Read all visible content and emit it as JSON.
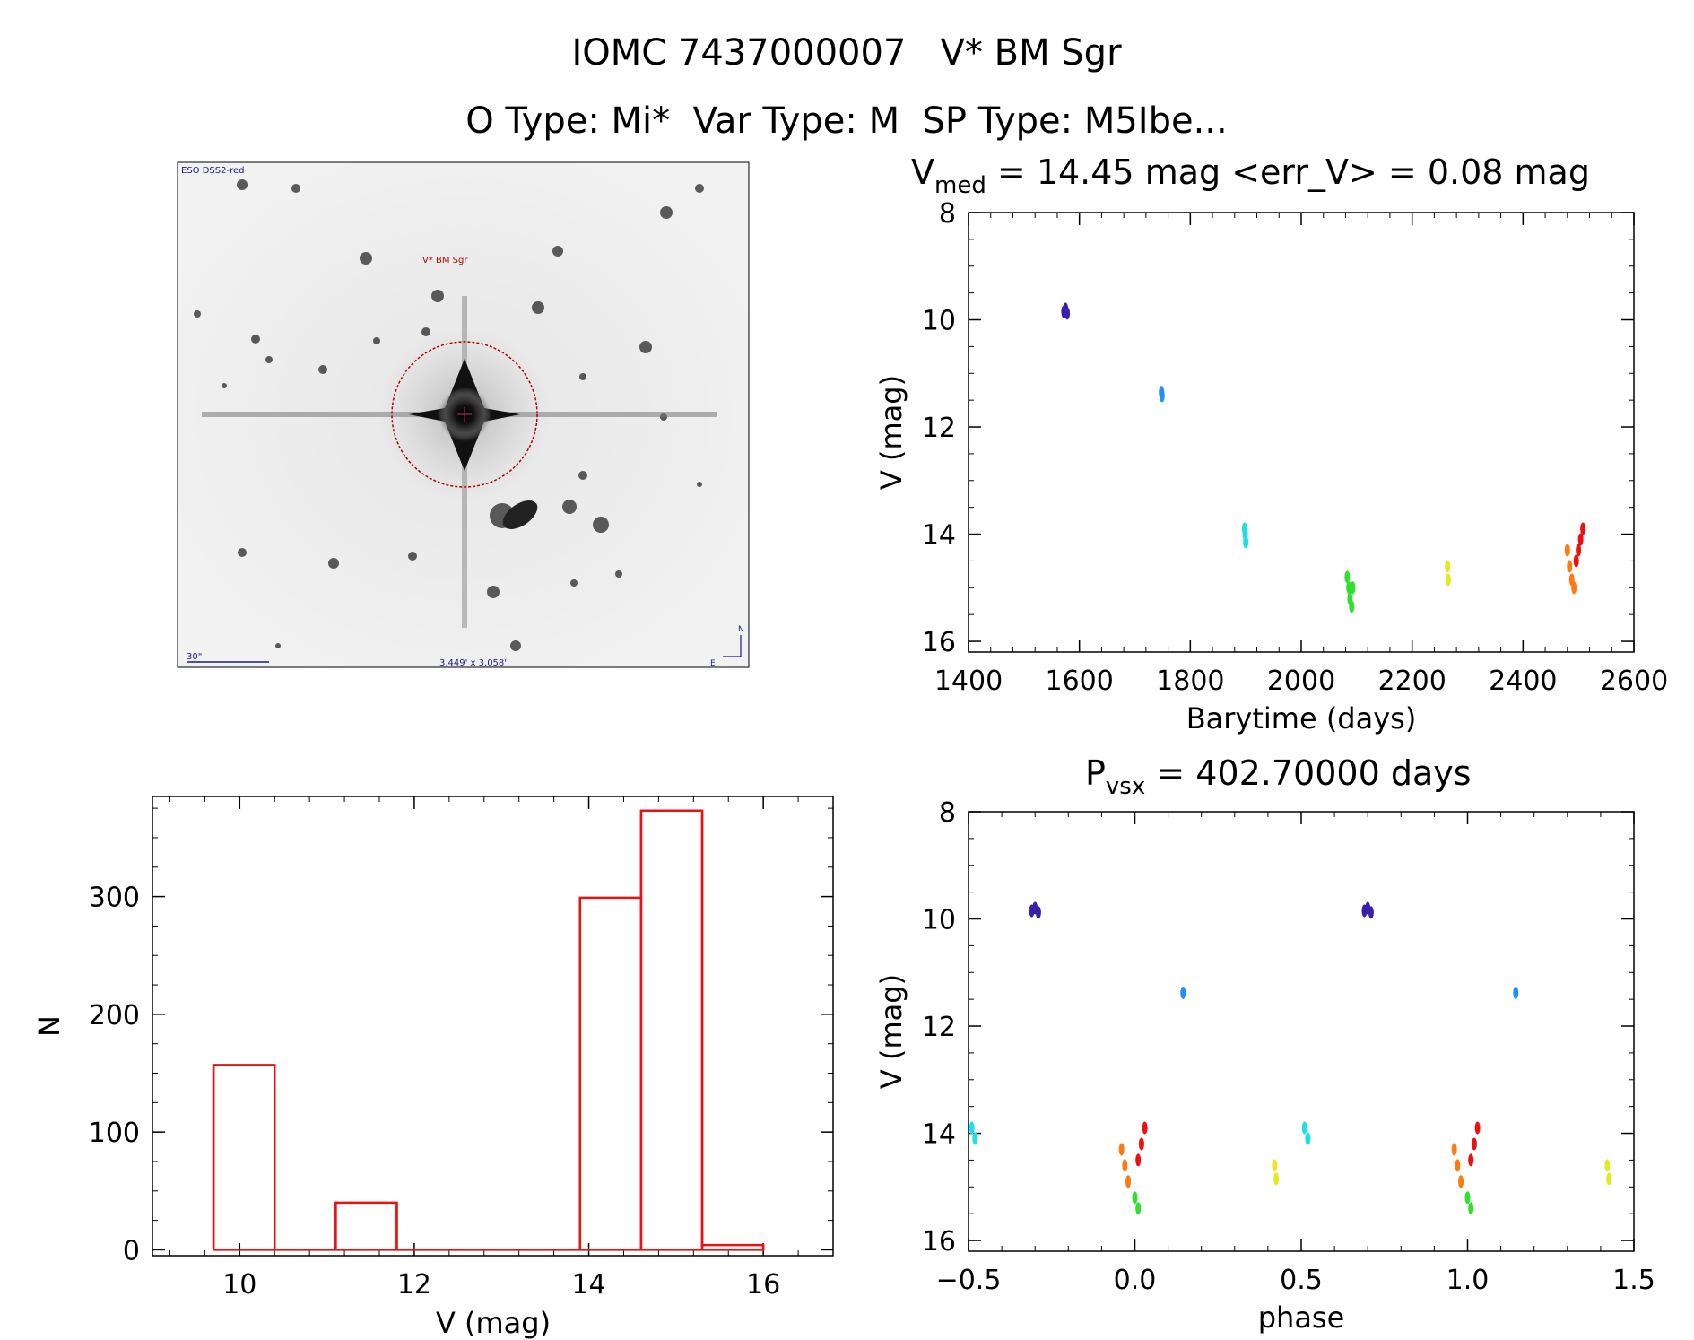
{
  "header": {
    "line1": "IOMC 7437000007   V* BM Sgr",
    "line2": "O Type: Mi*  Var Type: M  SP Type: M5Ibe..."
  },
  "image_panel": {
    "survey_label": "ESO DSS2-red",
    "object_label": "V* BM Sgr",
    "scale_label": "30\"",
    "fov_label": "3.449' x 3.058'",
    "compass_n": "N",
    "compass_e": "E"
  },
  "chart_data": [
    {
      "id": "lightcurve",
      "type": "scatter",
      "title": "V_med = 14.45 mag <err_V> = 0.08 mag",
      "title_parts": {
        "main": "V",
        "sub": "med",
        "rest": " = 14.45 mag <err_V> = 0.08 mag"
      },
      "xlabel": "Barytime (days)",
      "ylabel": "V (mag)",
      "xlim": [
        1400,
        2600
      ],
      "ylim": [
        16.2,
        8
      ],
      "y_inverted": true,
      "xticks": [
        1400,
        1600,
        1800,
        2000,
        2200,
        2400,
        2600
      ],
      "yticks": [
        8,
        10,
        12,
        14,
        16
      ],
      "groups": [
        {
          "color": "#3a1fa8",
          "x": [
            1572,
            1575,
            1578
          ],
          "y": [
            9.85,
            9.8,
            9.88
          ]
        },
        {
          "color": "#1e90ff",
          "x": [
            1748,
            1749
          ],
          "y": [
            11.35,
            11.42
          ]
        },
        {
          "color": "#20e0e0",
          "x": [
            1898,
            1899,
            1900
          ],
          "y": [
            13.9,
            14.0,
            14.15
          ]
        },
        {
          "color": "#30e030",
          "x": [
            2083,
            2086,
            2088,
            2091,
            2093
          ],
          "y": [
            14.8,
            15.0,
            15.2,
            15.35,
            15.0
          ]
        },
        {
          "color": "#e8e820",
          "x": [
            2264,
            2265
          ],
          "y": [
            14.6,
            14.85
          ]
        },
        {
          "color": "#ff7a10",
          "x": [
            2480,
            2484,
            2488,
            2492
          ],
          "y": [
            14.3,
            14.6,
            14.85,
            15.0
          ]
        },
        {
          "color": "#ee1010",
          "x": [
            2496,
            2500,
            2504,
            2508
          ],
          "y": [
            14.5,
            14.3,
            14.1,
            13.9
          ]
        }
      ]
    },
    {
      "id": "histogram",
      "type": "bar",
      "xlabel": "V (mag)",
      "ylabel": "N",
      "xlim": [
        9.0,
        16.8
      ],
      "ylim": [
        -5,
        385
      ],
      "xticks": [
        10,
        12,
        14,
        16
      ],
      "yticks": [
        0,
        100,
        200,
        300
      ],
      "bar_color": "#ee1010",
      "bins": [
        {
          "x0": 9.7,
          "x1": 10.4,
          "value": 157
        },
        {
          "x0": 10.4,
          "x1": 11.1,
          "value": 0
        },
        {
          "x0": 11.1,
          "x1": 11.8,
          "value": 40
        },
        {
          "x0": 11.8,
          "x1": 12.5,
          "value": 0
        },
        {
          "x0": 12.5,
          "x1": 13.2,
          "value": 0
        },
        {
          "x0": 13.2,
          "x1": 13.9,
          "value": 0
        },
        {
          "x0": 13.9,
          "x1": 14.6,
          "value": 299
        },
        {
          "x0": 14.6,
          "x1": 15.3,
          "value": 373
        },
        {
          "x0": 15.3,
          "x1": 16.0,
          "value": 4
        }
      ]
    },
    {
      "id": "phased",
      "type": "scatter",
      "title": "P_vsx = 402.70000 days",
      "title_parts": {
        "main": "P",
        "sub": "vsx",
        "rest": " = 402.70000 days"
      },
      "xlabel": "phase",
      "ylabel": "V (mag)",
      "xlim": [
        -0.5,
        1.5
      ],
      "ylim": [
        16.2,
        8
      ],
      "y_inverted": true,
      "xticks": [
        -0.5,
        0.0,
        0.5,
        1.0,
        1.5
      ],
      "yticks": [
        8,
        10,
        12,
        14,
        16
      ],
      "groups": [
        {
          "color": "#3a1fa8",
          "x": [
            -0.31,
            -0.3,
            -0.29,
            0.69,
            0.7,
            0.71
          ],
          "y": [
            9.85,
            9.8,
            9.88,
            9.85,
            9.8,
            9.88
          ]
        },
        {
          "color": "#1e90ff",
          "x": [
            0.145,
            1.145
          ],
          "y": [
            11.38,
            11.38
          ]
        },
        {
          "color": "#20e0e0",
          "x": [
            -0.49,
            -0.48,
            0.51,
            0.52
          ],
          "y": [
            13.9,
            14.1,
            13.9,
            14.1
          ]
        },
        {
          "color": "#30e030",
          "x": [
            -0.02,
            0.0,
            0.01,
            0.98,
            1.0,
            1.01
          ],
          "y": [
            14.9,
            15.2,
            15.4,
            14.9,
            15.2,
            15.4
          ]
        },
        {
          "color": "#e8e820",
          "x": [
            0.42,
            0.425,
            1.42,
            1.425
          ],
          "y": [
            14.6,
            14.85,
            14.6,
            14.85
          ]
        },
        {
          "color": "#ff7a10",
          "x": [
            -0.04,
            -0.03,
            -0.02,
            0.96,
            0.97,
            0.98
          ],
          "y": [
            14.3,
            14.6,
            14.9,
            14.3,
            14.6,
            14.9
          ]
        },
        {
          "color": "#ee1010",
          "x": [
            0.01,
            0.02,
            0.03,
            1.01,
            1.02,
            1.03
          ],
          "y": [
            14.5,
            14.2,
            13.9,
            14.5,
            14.2,
            13.9
          ]
        }
      ]
    }
  ]
}
